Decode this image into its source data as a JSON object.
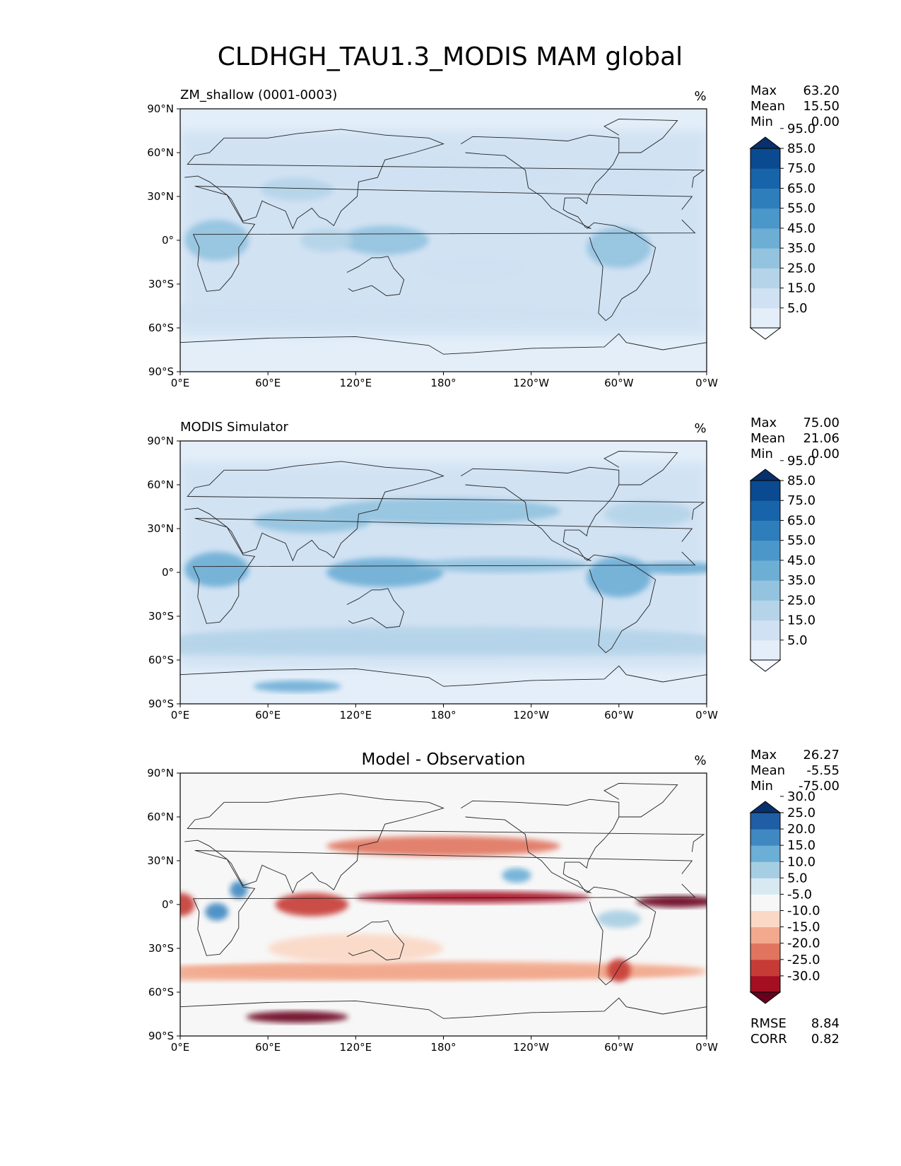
{
  "figure": {
    "title": "CLDHGH_TAU1.3_MODIS MAM global"
  },
  "chart_data": [
    {
      "type": "heatmap",
      "panel_title_left": "ZM_shallow (0001-0003)",
      "panel_title_center": "",
      "units": "%",
      "stats": [
        {
          "label": "Max",
          "value": "63.20"
        },
        {
          "label": "Mean",
          "value": "15.50"
        },
        {
          "label": "Min",
          "value": "0.00"
        }
      ],
      "xticks": [
        "0°E",
        "60°E",
        "120°E",
        "180°",
        "120°W",
        "60°W",
        "0°W"
      ],
      "yticks": [
        "90°N",
        "60°N",
        "30°N",
        "0°",
        "30°S",
        "60°S",
        "90°S"
      ],
      "xlim": [
        0,
        360
      ],
      "ylim": [
        -90,
        90
      ],
      "colorbar": {
        "type": "sequential-blues",
        "extend": "both",
        "colors": [
          "#f7fbff",
          "#e3eef9",
          "#cfe1f2",
          "#b5d4e9",
          "#93c3df",
          "#6daed5",
          "#4b97c9",
          "#2f7ebc",
          "#1864aa",
          "#0a4a90",
          "#08306b"
        ],
        "tick_labels": [
          "5.0",
          "15.0",
          "25.0",
          "35.0",
          "45.0",
          "55.0",
          "65.0",
          "75.0",
          "85.0",
          "95.0"
        ]
      },
      "bottom_stats": []
    },
    {
      "type": "heatmap",
      "panel_title_left": "MODIS Simulator",
      "panel_title_center": "",
      "units": "%",
      "stats": [
        {
          "label": "Max",
          "value": "75.00"
        },
        {
          "label": "Mean",
          "value": "21.06"
        },
        {
          "label": "Min",
          "value": "0.00"
        }
      ],
      "xticks": [
        "0°E",
        "60°E",
        "120°E",
        "180°",
        "120°W",
        "60°W",
        "0°W"
      ],
      "yticks": [
        "90°N",
        "60°N",
        "30°N",
        "0°",
        "30°S",
        "60°S",
        "90°S"
      ],
      "xlim": [
        0,
        360
      ],
      "ylim": [
        -90,
        90
      ],
      "colorbar": {
        "type": "sequential-blues",
        "extend": "both",
        "colors": [
          "#f7fbff",
          "#e3eef9",
          "#cfe1f2",
          "#b5d4e9",
          "#93c3df",
          "#6daed5",
          "#4b97c9",
          "#2f7ebc",
          "#1864aa",
          "#0a4a90",
          "#08306b"
        ],
        "tick_labels": [
          "5.0",
          "15.0",
          "25.0",
          "35.0",
          "45.0",
          "55.0",
          "65.0",
          "75.0",
          "85.0",
          "95.0"
        ]
      },
      "bottom_stats": []
    },
    {
      "type": "heatmap",
      "panel_title_left": "",
      "panel_title_center": "Model - Observation",
      "units": "%",
      "stats": [
        {
          "label": "Max",
          "value": "26.27"
        },
        {
          "label": "Mean",
          "value": "-5.55"
        },
        {
          "label": "Min",
          "value": "-75.00"
        }
      ],
      "xticks": [
        "0°E",
        "60°E",
        "120°E",
        "180°",
        "120°W",
        "60°W",
        "0°W"
      ],
      "yticks": [
        "90°N",
        "60°N",
        "30°N",
        "0°",
        "30°S",
        "60°S",
        "90°S"
      ],
      "xlim": [
        0,
        360
      ],
      "ylim": [
        -90,
        90
      ],
      "colorbar": {
        "type": "diverging-RdBu",
        "extend": "both",
        "colors": [
          "#67001f",
          "#a50f22",
          "#c73b36",
          "#e0745e",
          "#f2a98d",
          "#fbd8c6",
          "#f7f7f7",
          "#d8e9f2",
          "#a6cee3",
          "#6baed6",
          "#3f88c1",
          "#1f5ea4",
          "#08306b"
        ],
        "tick_labels": [
          "-30.0",
          "-25.0",
          "-20.0",
          "-15.0",
          "-10.0",
          "-5.0",
          "5.0",
          "10.0",
          "15.0",
          "20.0",
          "25.0",
          "30.0"
        ]
      },
      "bottom_stats": [
        {
          "label": "RMSE",
          "value": "8.84"
        },
        {
          "label": "CORR",
          "value": "0.82"
        }
      ]
    }
  ]
}
